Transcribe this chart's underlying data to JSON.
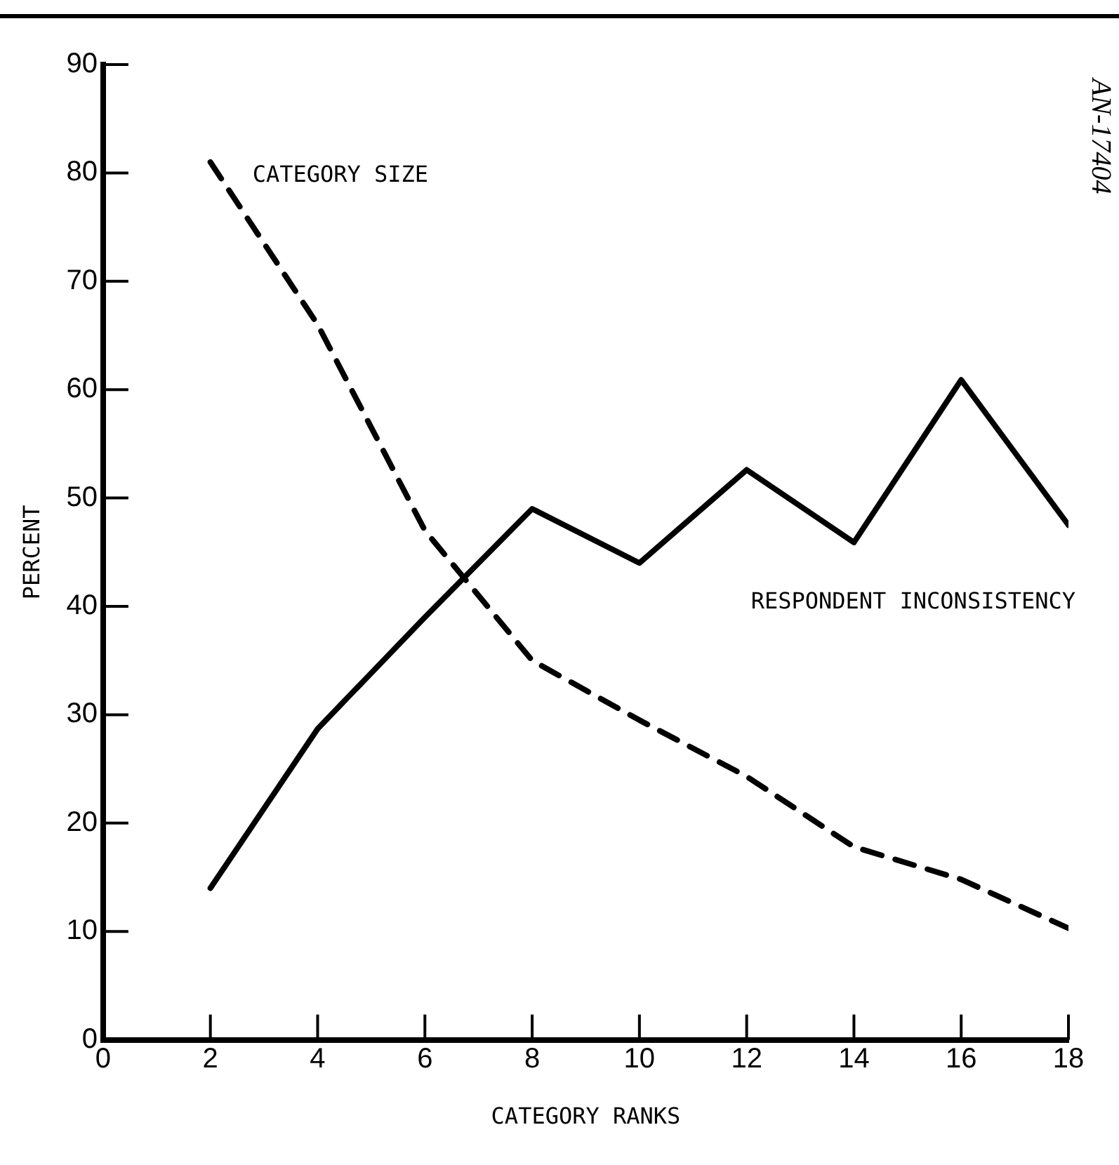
{
  "chart_data": {
    "type": "line",
    "xlabel": "CATEGORY RANKS",
    "ylabel": "PERCENT",
    "x": [
      2,
      4,
      6,
      8,
      10,
      12,
      14,
      16,
      18
    ],
    "series": [
      {
        "name": "CATEGORY SIZE",
        "color": "#000000",
        "line_style": "dashed",
        "values": [
          81,
          66,
          47,
          35,
          29.5,
          24.3,
          17.8,
          14.8,
          10.3
        ]
      },
      {
        "name": "RESPONDENT INCONSISTENCY",
        "color": "#000000",
        "line_style": "solid",
        "values": [
          14,
          28.7,
          39,
          49,
          44,
          52.6,
          45.9,
          60.9,
          47.5
        ]
      }
    ],
    "xlim": [
      0,
      18
    ],
    "xticks": [
      0,
      2,
      4,
      6,
      8,
      10,
      12,
      14,
      16,
      18
    ],
    "ylim": [
      0,
      90
    ],
    "yticks": [
      0,
      10,
      20,
      30,
      40,
      50,
      60,
      70,
      80,
      90
    ],
    "grid": false,
    "legend": false,
    "marker": "none",
    "annotations": [
      "AN-17404"
    ]
  }
}
